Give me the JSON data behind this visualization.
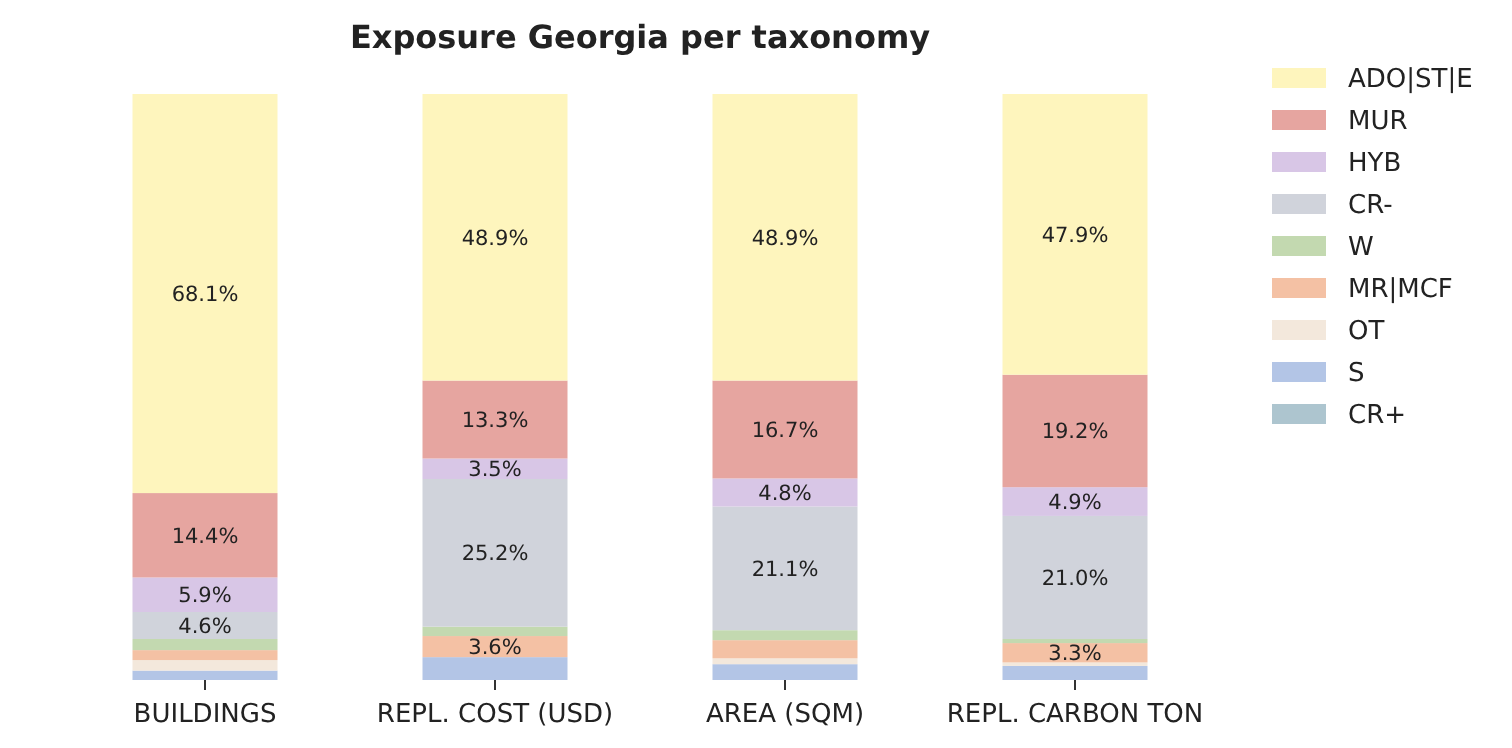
{
  "chart_data": {
    "type": "bar",
    "title": "Exposure Georgia per taxonomy",
    "stacked": true,
    "categories": [
      "BUILDINGS",
      "REPL. COST (USD)",
      "AREA (SQM)",
      "REPL. CARBON TON"
    ],
    "ylim": [
      0,
      100
    ],
    "tick_labels": "x",
    "legend": "top right",
    "series": [
      {
        "name": "CR+",
        "color": "#adc5cf",
        "values": [
          null,
          null,
          null,
          null
        ],
        "value_labels": [
          null,
          null,
          null,
          null
        ]
      },
      {
        "name": "S",
        "color": "#b3c5e6",
        "values": [
          1.6,
          3.9,
          2.7,
          2.4
        ],
        "value_labels": [
          null,
          null,
          null,
          null
        ]
      },
      {
        "name": "OT",
        "color": "#f3e8dc",
        "values": [
          1.8,
          null,
          1.0,
          0.6
        ],
        "value_labels": [
          null,
          null,
          null,
          null
        ]
      },
      {
        "name": "MR|MCF",
        "color": "#f4c1a4",
        "values": [
          1.7,
          3.6,
          3.1,
          3.3
        ],
        "value_labels": [
          null,
          "3.6%",
          null,
          "3.3%"
        ]
      },
      {
        "name": "W",
        "color": "#c3d9b0",
        "values": [
          1.9,
          1.6,
          1.7,
          0.7
        ],
        "value_labels": [
          null,
          null,
          null,
          null
        ]
      },
      {
        "name": "CR-",
        "color": "#d0d3db",
        "values": [
          4.6,
          25.2,
          21.1,
          21.0
        ],
        "value_labels": [
          "4.6%",
          "25.2%",
          "21.1%",
          "21.0%"
        ]
      },
      {
        "name": "HYB",
        "color": "#d8c6e6",
        "values": [
          5.9,
          3.5,
          4.8,
          4.9
        ],
        "value_labels": [
          "5.9%",
          "3.5%",
          "4.8%",
          "4.9%"
        ]
      },
      {
        "name": "MUR",
        "color": "#e6a5a0",
        "values": [
          14.4,
          13.3,
          16.7,
          19.2
        ],
        "value_labels": [
          "14.4%",
          "13.3%",
          "16.7%",
          "19.2%"
        ]
      },
      {
        "name": "ADO|ST|E",
        "color": "#fef5bd",
        "values": [
          68.1,
          48.9,
          48.9,
          47.9
        ],
        "value_labels": [
          "68.1%",
          "48.9%",
          "48.9%",
          "47.9%"
        ]
      }
    ]
  }
}
